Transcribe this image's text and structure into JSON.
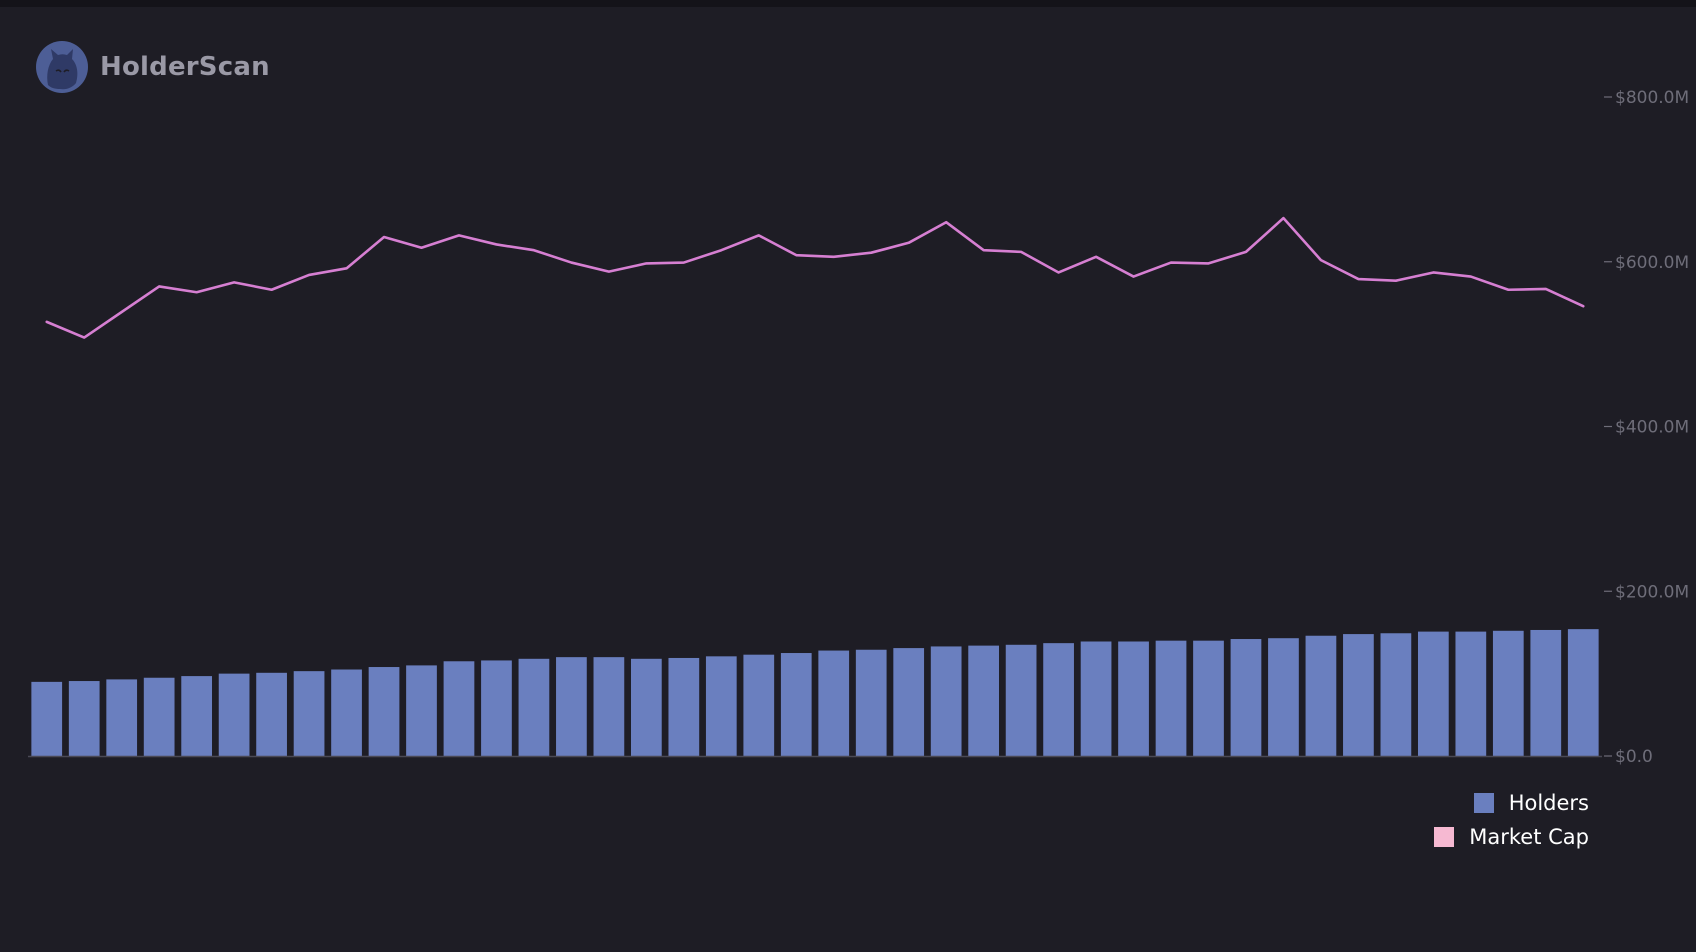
{
  "brand": {
    "name": "HolderScan",
    "logo_icon": "cat-head-icon"
  },
  "colors": {
    "background": "#1e1d25",
    "bar": "#6a7fbf",
    "line": "#d67fd2",
    "legend_market_cap": "#f6b9d2",
    "axis": "#4a4955",
    "tick_text": "#6e6d79"
  },
  "chart_data": {
    "type": "bar+line",
    "title": "",
    "xlabel": "",
    "ylabel": "",
    "y_axis": {
      "position": "right",
      "ticks": [
        "$0.0",
        "$200.0M",
        "$400.0M",
        "$600.0M",
        "$800.0M"
      ],
      "tick_values": [
        0,
        200,
        400,
        600,
        800
      ],
      "unit": "$M",
      "ylim": [
        0,
        800
      ]
    },
    "grid": false,
    "legend_placement": "bottom-right",
    "series": [
      {
        "name": "Holders",
        "type": "bar",
        "values": [
          90,
          91,
          93,
          95,
          97,
          100,
          101,
          103,
          105,
          108,
          110,
          115,
          116,
          118,
          120,
          120,
          118,
          119,
          121,
          123,
          125,
          128,
          129,
          131,
          133,
          134,
          135,
          137,
          139,
          139,
          140,
          140,
          142,
          143,
          146,
          148,
          149,
          151,
          151,
          152,
          153,
          154
        ]
      },
      {
        "name": "Market Cap",
        "type": "line",
        "values": [
          527,
          508,
          539,
          570,
          563,
          575,
          566,
          584,
          592,
          630,
          617,
          632,
          621,
          614,
          599,
          588,
          598,
          599,
          614,
          632,
          608,
          606,
          611,
          623,
          648,
          614,
          612,
          587,
          606,
          582,
          599,
          598,
          612,
          653,
          602,
          579,
          577,
          587,
          582,
          566,
          567,
          546
        ]
      }
    ]
  },
  "legend": {
    "items": [
      {
        "label": "Holders"
      },
      {
        "label": "Market Cap"
      }
    ]
  }
}
